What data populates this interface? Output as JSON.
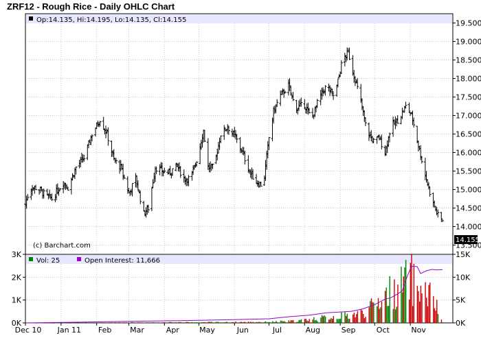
{
  "title": "ZRF12 - Rough Rice - Daily OHLC Chart",
  "ohlc_info": "Op:14.135, Hi:14.195, Lo:14.135, Cl:14.155",
  "copyright": "(c) Barchart.com",
  "last_price_badge": "14.155",
  "volume_legend": "Vol: 25",
  "oi_legend": "Open Interest: 11,666",
  "colors": {
    "legend_bg": "#e6e6ff",
    "price_bar": "#000000",
    "vol_up": "#008000",
    "vol_down": "#cc0000",
    "open_interest": "#9900cc",
    "grid": "#c8c8c8"
  },
  "chart_data": [
    {
      "type": "ohlc",
      "title": "ZRF12 - Rough Rice - Daily OHLC Chart",
      "ylim": [
        13.25,
        19.75
      ],
      "y_ticks": [
        "13.500",
        "14.000",
        "14.500",
        "15.000",
        "15.500",
        "16.000",
        "16.500",
        "17.000",
        "17.500",
        "18.000",
        "18.500",
        "19.000",
        "19.500"
      ],
      "x_tick_labels": [
        "Dec 10",
        "Jan 11",
        "Feb",
        "Mar",
        "Apr",
        "May",
        "Jun",
        "Jul",
        "Aug",
        "Sep",
        "Oct",
        "Nov"
      ],
      "grid": true,
      "last": {
        "open": 14.135,
        "high": 14.195,
        "low": 14.135,
        "close": 14.155
      },
      "close_path": [
        [
          "2010-12-01",
          14.6
        ],
        [
          "2010-12-05",
          15.05
        ],
        [
          "2010-12-12",
          15.05
        ],
        [
          "2010-12-18",
          14.85
        ],
        [
          "2010-12-24",
          14.75
        ],
        [
          "2011-01-03",
          15.2
        ],
        [
          "2011-01-07",
          15.05
        ],
        [
          "2011-01-14",
          15.6
        ],
        [
          "2011-01-21",
          15.85
        ],
        [
          "2011-01-28",
          16.5
        ],
        [
          "2011-02-04",
          16.9
        ],
        [
          "2011-02-10",
          16.5
        ],
        [
          "2011-02-16",
          15.8
        ],
        [
          "2011-02-22",
          15.6
        ],
        [
          "2011-03-01",
          14.9
        ],
        [
          "2011-03-07",
          15.3
        ],
        [
          "2011-03-14",
          14.35
        ],
        [
          "2011-03-18",
          14.5
        ],
        [
          "2011-03-24",
          15.6
        ],
        [
          "2011-03-30",
          15.5
        ],
        [
          "2011-04-05",
          15.45
        ],
        [
          "2011-04-12",
          15.65
        ],
        [
          "2011-04-18",
          15.3
        ],
        [
          "2011-04-24",
          15.3
        ],
        [
          "2011-04-30",
          15.9
        ],
        [
          "2011-05-05",
          16.6
        ],
        [
          "2011-05-09",
          15.6
        ],
        [
          "2011-05-14",
          15.6
        ],
        [
          "2011-05-20",
          16.5
        ],
        [
          "2011-05-26",
          16.7
        ],
        [
          "2011-06-02",
          16.4
        ],
        [
          "2011-06-08",
          16.0
        ],
        [
          "2011-06-14",
          15.5
        ],
        [
          "2011-06-20",
          15.2
        ],
        [
          "2011-06-26",
          15.1
        ],
        [
          "2011-07-01",
          16.4
        ],
        [
          "2011-07-05",
          17.1
        ],
        [
          "2011-07-10",
          17.5
        ],
        [
          "2011-07-18",
          17.8
        ],
        [
          "2011-07-24",
          17.2
        ],
        [
          "2011-08-01",
          17.3
        ],
        [
          "2011-08-07",
          16.9
        ],
        [
          "2011-08-14",
          17.5
        ],
        [
          "2011-08-20",
          17.8
        ],
        [
          "2011-08-27",
          17.5
        ],
        [
          "2011-09-03",
          18.5
        ],
        [
          "2011-09-08",
          18.7
        ],
        [
          "2011-09-12",
          18.2
        ],
        [
          "2011-09-18",
          17.5
        ],
        [
          "2011-09-24",
          16.6
        ],
        [
          "2011-09-30",
          16.3
        ],
        [
          "2011-10-05",
          16.4
        ],
        [
          "2011-10-10",
          16.0
        ],
        [
          "2011-10-15",
          16.7
        ],
        [
          "2011-10-22",
          16.9
        ],
        [
          "2011-10-29",
          17.3
        ],
        [
          "2011-11-03",
          16.9
        ],
        [
          "2011-11-08",
          16.2
        ],
        [
          "2011-11-14",
          15.4
        ],
        [
          "2011-11-20",
          14.7
        ],
        [
          "2011-11-25",
          14.3
        ],
        [
          "2011-11-29",
          14.155
        ]
      ]
    },
    {
      "type": "bar",
      "series_label": "Vol: 25",
      "ylim": [
        0,
        3000
      ],
      "y_ticks": [
        "0K",
        "1K",
        "2K",
        "3K"
      ],
      "volume_path": [
        [
          "2010-12-01",
          0
        ],
        [
          "2011-01-15",
          10
        ],
        [
          "2011-03-01",
          30
        ],
        [
          "2011-05-01",
          40
        ],
        [
          "2011-07-01",
          60
        ],
        [
          "2011-07-25",
          120
        ],
        [
          "2011-08-10",
          250
        ],
        [
          "2011-08-25",
          350
        ],
        [
          "2011-09-10",
          450
        ],
        [
          "2011-09-25",
          700
        ],
        [
          "2011-10-05",
          1400
        ],
        [
          "2011-10-15",
          1800
        ],
        [
          "2011-10-25",
          2200
        ],
        [
          "2011-11-01",
          2600
        ],
        [
          "2011-11-10",
          1900
        ],
        [
          "2011-11-20",
          1500
        ],
        [
          "2011-11-29",
          25
        ]
      ]
    },
    {
      "type": "line",
      "series_label": "Open Interest: 11,666",
      "ylim": [
        0,
        15000
      ],
      "y_ticks": [
        "0K",
        "5K",
        "10K",
        "15K"
      ],
      "points": [
        [
          "2010-12-01",
          0
        ],
        [
          "2011-01-15",
          150
        ],
        [
          "2011-03-01",
          350
        ],
        [
          "2011-04-15",
          500
        ],
        [
          "2011-06-01",
          700
        ],
        [
          "2011-07-01",
          900
        ],
        [
          "2011-07-20",
          1400
        ],
        [
          "2011-08-05",
          1700
        ],
        [
          "2011-08-20",
          2200
        ],
        [
          "2011-09-10",
          2500
        ],
        [
          "2011-09-20",
          3000
        ],
        [
          "2011-10-01",
          4000
        ],
        [
          "2011-10-10",
          5200
        ],
        [
          "2011-10-15",
          5500
        ],
        [
          "2011-10-20",
          6200
        ],
        [
          "2011-10-25",
          7000
        ],
        [
          "2011-10-29",
          10000
        ],
        [
          "2011-11-02",
          12400
        ],
        [
          "2011-11-07",
          12300
        ],
        [
          "2011-11-10",
          10800
        ],
        [
          "2011-11-15",
          11400
        ],
        [
          "2011-11-20",
          11700
        ],
        [
          "2011-11-24",
          11600
        ],
        [
          "2011-11-29",
          11666
        ]
      ]
    }
  ]
}
